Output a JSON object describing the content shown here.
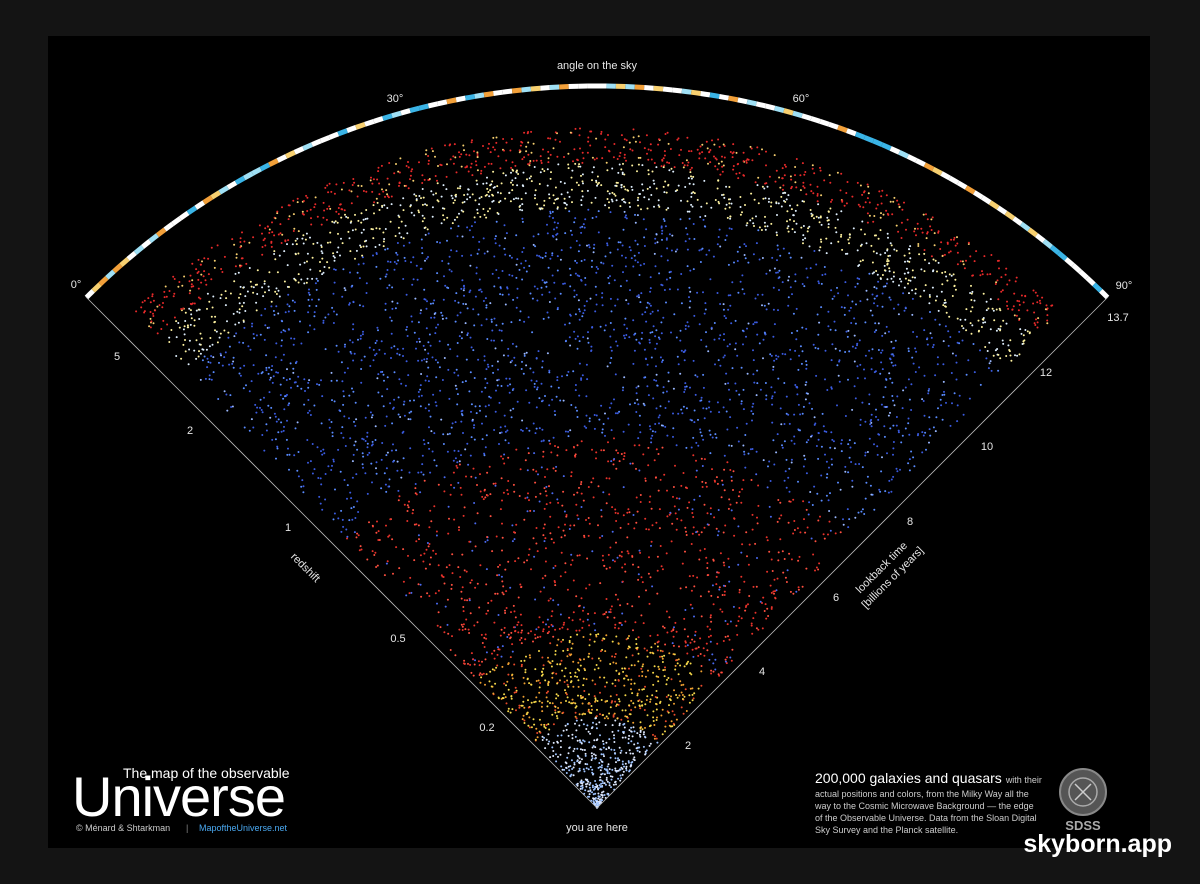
{
  "sky_axis": {
    "title": "angle on the sky",
    "ticks": [
      "0°",
      "30°",
      "60°",
      "90°"
    ]
  },
  "redshift_axis": {
    "title": "redshift",
    "ticks": [
      "5",
      "2",
      "1",
      "0.5",
      "0.2"
    ]
  },
  "lookback_axis": {
    "title": "lookback time",
    "subtitle": "[billions of years]",
    "ticks": [
      "13.7",
      "12",
      "10",
      "8",
      "6",
      "4",
      "2"
    ]
  },
  "origin_label": "you are here",
  "poster": {
    "kicker": "The map of the observable",
    "title": "Universe",
    "credit": "© Ménard & Shtarkman",
    "separator": "|",
    "url": "MapoftheUniverse.net"
  },
  "description": {
    "heading": "200,000 galaxies and quasars",
    "lines": [
      "with their",
      "actual positions and colors, from the Milky Way all the",
      "way to the Cosmic Microwave Background — the edge",
      "of the Observable Universe. Data from the Sloan Digital",
      "Sky Survey and the Planck satellite."
    ]
  },
  "logo": "SDSS",
  "watermark": "skyborn.app"
}
